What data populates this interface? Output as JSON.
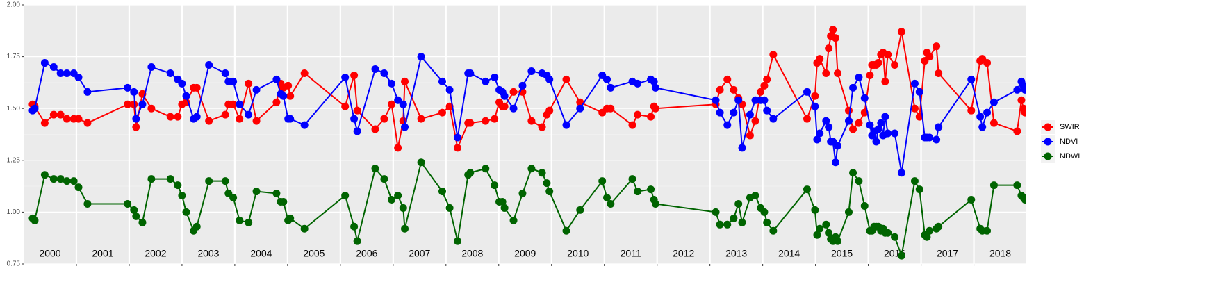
{
  "chart_data": {
    "type": "line",
    "x": [
      2000.17,
      2000.21,
      2000.4,
      2000.57,
      2000.7,
      2000.82,
      2000.95,
      2001.04,
      2001.21,
      2001.97,
      2002.09,
      2002.13,
      2002.25,
      2002.42,
      2002.78,
      2002.92,
      2003.0,
      2003.08,
      2003.22,
      2003.28,
      2003.51,
      2003.82,
      2003.88,
      2003.97,
      2004.09,
      2004.26,
      2004.41,
      2004.79,
      2004.87,
      2004.92,
      2005.01,
      2005.05,
      2005.32,
      2006.09,
      2006.26,
      2006.32,
      2006.66,
      2006.83,
      2006.97,
      2007.09,
      2007.19,
      2007.22,
      2007.53,
      2007.93,
      2008.07,
      2008.22,
      2008.42,
      2008.46,
      2008.75,
      2008.92,
      2009.01,
      2009.07,
      2009.11,
      2009.28,
      2009.45,
      2009.62,
      2009.82,
      2009.91,
      2009.96,
      2010.28,
      2010.54,
      2010.96,
      2011.05,
      2011.12,
      2011.53,
      2011.63,
      2011.88,
      2011.94,
      2011.97,
      2013.11,
      2013.19,
      2013.33,
      2013.45,
      2013.54,
      2013.61,
      2013.76,
      2013.86,
      2013.96,
      2014.03,
      2014.08,
      2014.2,
      2014.84,
      2014.99,
      2015.03,
      2015.08,
      2015.2,
      2015.25,
      2015.29,
      2015.33,
      2015.38,
      2015.42,
      2015.63,
      2015.71,
      2015.82,
      2015.93,
      2016.03,
      2016.07,
      2016.11,
      2016.15,
      2016.19,
      2016.24,
      2016.28,
      2016.32,
      2016.37,
      2016.5,
      2016.63,
      2016.88,
      2016.97,
      2017.07,
      2017.11,
      2017.16,
      2017.29,
      2017.33,
      2017.95,
      2018.12,
      2018.16,
      2018.25,
      2018.38,
      2018.82,
      2018.9,
      2018.94,
      2018.97
    ],
    "series": [
      {
        "name": "SWIR",
        "color": "#ff0000",
        "values": [
          1.52,
          1.51,
          1.43,
          1.47,
          1.47,
          1.45,
          1.45,
          1.45,
          1.43,
          1.52,
          1.52,
          1.41,
          1.57,
          1.5,
          1.46,
          1.46,
          1.52,
          1.53,
          1.6,
          1.6,
          1.44,
          1.47,
          1.52,
          1.52,
          1.45,
          1.62,
          1.44,
          1.53,
          1.62,
          1.6,
          1.61,
          1.56,
          1.67,
          1.51,
          1.66,
          1.49,
          1.4,
          1.45,
          1.52,
          1.31,
          1.44,
          1.63,
          1.45,
          1.48,
          1.51,
          1.31,
          1.43,
          1.43,
          1.44,
          1.45,
          1.53,
          1.51,
          1.51,
          1.58,
          1.58,
          1.44,
          1.41,
          1.47,
          1.49,
          1.64,
          1.53,
          1.48,
          1.5,
          1.5,
          1.42,
          1.47,
          1.46,
          1.51,
          1.5,
          1.52,
          1.59,
          1.64,
          1.59,
          1.55,
          1.52,
          1.37,
          1.44,
          1.58,
          1.61,
          1.64,
          1.76,
          1.45,
          1.56,
          1.72,
          1.74,
          1.67,
          1.79,
          1.85,
          1.88,
          1.84,
          1.67,
          1.49,
          1.4,
          1.43,
          1.48,
          1.66,
          1.71,
          1.71,
          1.71,
          1.72,
          1.76,
          1.77,
          1.63,
          1.76,
          1.71,
          1.87,
          1.5,
          1.46,
          1.73,
          1.77,
          1.75,
          1.8,
          1.67,
          1.49,
          1.73,
          1.74,
          1.72,
          1.43,
          1.39,
          1.54,
          1.5,
          1.48
        ]
      },
      {
        "name": "NDVI",
        "color": "#0000ff",
        "values": [
          1.49,
          1.5,
          1.72,
          1.7,
          1.67,
          1.67,
          1.67,
          1.65,
          1.58,
          1.6,
          1.58,
          1.45,
          1.52,
          1.7,
          1.67,
          1.64,
          1.62,
          1.56,
          1.45,
          1.46,
          1.71,
          1.67,
          1.63,
          1.63,
          1.52,
          1.47,
          1.59,
          1.64,
          1.57,
          1.56,
          1.45,
          1.45,
          1.42,
          1.65,
          1.45,
          1.39,
          1.69,
          1.67,
          1.62,
          1.54,
          1.52,
          1.41,
          1.75,
          1.63,
          1.59,
          1.36,
          1.67,
          1.67,
          1.63,
          1.65,
          1.59,
          1.58,
          1.56,
          1.5,
          1.61,
          1.68,
          1.67,
          1.66,
          1.64,
          1.42,
          1.5,
          1.66,
          1.64,
          1.6,
          1.63,
          1.62,
          1.64,
          1.63,
          1.6,
          1.54,
          1.48,
          1.42,
          1.48,
          1.54,
          1.31,
          1.47,
          1.54,
          1.54,
          1.54,
          1.49,
          1.45,
          1.58,
          1.51,
          1.35,
          1.38,
          1.44,
          1.41,
          1.34,
          1.34,
          1.24,
          1.32,
          1.44,
          1.6,
          1.65,
          1.55,
          1.42,
          1.37,
          1.39,
          1.34,
          1.4,
          1.43,
          1.37,
          1.46,
          1.38,
          1.38,
          1.19,
          1.62,
          1.58,
          1.36,
          1.36,
          1.36,
          1.35,
          1.41,
          1.64,
          1.46,
          1.41,
          1.48,
          1.53,
          1.59,
          1.63,
          1.61,
          1.59
        ]
      },
      {
        "name": "NDWI",
        "color": "#006400",
        "values": [
          0.97,
          0.96,
          1.18,
          1.16,
          1.16,
          1.15,
          1.15,
          1.12,
          1.04,
          1.04,
          1.01,
          0.98,
          0.95,
          1.16,
          1.16,
          1.13,
          1.08,
          1.0,
          0.91,
          0.93,
          1.15,
          1.15,
          1.09,
          1.07,
          0.96,
          0.95,
          1.1,
          1.09,
          1.05,
          1.05,
          0.96,
          0.97,
          0.92,
          1.08,
          0.93,
          0.86,
          1.21,
          1.16,
          1.06,
          1.08,
          1.02,
          0.92,
          1.24,
          1.1,
          1.02,
          0.86,
          1.18,
          1.19,
          1.21,
          1.13,
          1.05,
          1.05,
          1.02,
          0.96,
          1.09,
          1.21,
          1.19,
          1.14,
          1.1,
          0.91,
          1.01,
          1.15,
          1.07,
          1.04,
          1.16,
          1.1,
          1.11,
          1.06,
          1.04,
          1.0,
          0.94,
          0.94,
          0.97,
          1.04,
          0.95,
          1.07,
          1.08,
          1.02,
          1.0,
          0.95,
          0.91,
          1.11,
          1.01,
          0.89,
          0.92,
          0.94,
          0.9,
          0.87,
          0.86,
          0.88,
          0.86,
          1.0,
          1.19,
          1.15,
          1.03,
          0.91,
          0.91,
          0.93,
          0.93,
          0.93,
          0.91,
          0.92,
          0.9,
          0.9,
          0.88,
          0.79,
          1.15,
          1.11,
          0.89,
          0.88,
          0.91,
          0.92,
          0.93,
          1.06,
          0.92,
          0.91,
          0.91,
          1.13,
          1.13,
          1.08,
          1.07,
          1.06
        ]
      }
    ],
    "xlim": [
      2000,
      2018.98
    ],
    "xticks": [
      {
        "value": 2000.5,
        "label": "2000"
      },
      {
        "value": 2001.5,
        "label": "2001"
      },
      {
        "value": 2002.5,
        "label": "2002"
      },
      {
        "value": 2003.5,
        "label": "2003"
      },
      {
        "value": 2004.5,
        "label": "2004"
      },
      {
        "value": 2005.5,
        "label": "2005"
      },
      {
        "value": 2006.5,
        "label": "2006"
      },
      {
        "value": 2007.5,
        "label": "2007"
      },
      {
        "value": 2008.5,
        "label": "2008"
      },
      {
        "value": 2009.5,
        "label": "2009"
      },
      {
        "value": 2010.5,
        "label": "2010"
      },
      {
        "value": 2011.5,
        "label": "2011"
      },
      {
        "value": 2012.5,
        "label": "2012"
      },
      {
        "value": 2013.5,
        "label": "2013"
      },
      {
        "value": 2014.5,
        "label": "2014"
      },
      {
        "value": 2015.5,
        "label": "2015"
      },
      {
        "value": 2016.5,
        "label": "2016"
      },
      {
        "value": 2017.5,
        "label": "2017"
      },
      {
        "value": 2018.5,
        "label": "2018"
      }
    ],
    "xgrid": [
      2001,
      2002,
      2003,
      2004,
      2005,
      2006,
      2007,
      2008,
      2009,
      2010,
      2011,
      2012,
      2013,
      2014,
      2015,
      2016,
      2017,
      2018
    ],
    "ylim": [
      0.75,
      2.0
    ],
    "yticks": [
      0.75,
      {
        "value": 1.0,
        "label": "1.00"
      },
      1.25,
      {
        "value": 1.5,
        "label": "1.50"
      },
      1.75,
      {
        "value": 2.0,
        "label": "2.00"
      }
    ],
    "grid": true,
    "minor_grid": true,
    "legend": "right"
  }
}
